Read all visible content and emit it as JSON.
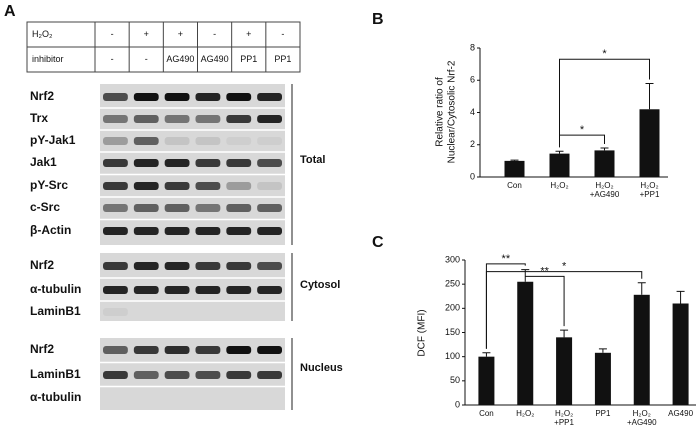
{
  "panel_labels": [
    "A",
    "B",
    "C"
  ],
  "blot": {
    "header": {
      "rows": [
        {
          "label": "H₂O₂",
          "cells": [
            "-",
            "+",
            "+",
            "-",
            "+",
            "-"
          ]
        },
        {
          "label": "inhibitor",
          "cells": [
            "-",
            "-",
            "AG490",
            "AG490",
            "PP1",
            "PP1"
          ]
        }
      ]
    },
    "groups": [
      {
        "label": "Total",
        "rows": [
          "Nrf2",
          "Trx",
          "pY-Jak1",
          "Jak1",
          "pY-Src",
          "c-Src",
          "β-Actin"
        ]
      },
      {
        "label": "Cytosol",
        "rows": [
          "Nrf2",
          "α-tubulin",
          "LaminB1"
        ]
      },
      {
        "label": "Nucleus",
        "rows": [
          "Nrf2",
          "LaminB1",
          "α-tubulin"
        ]
      }
    ]
  },
  "chart_data": [
    {
      "type": "bar",
      "ylabel": [
        "Relative ratio of",
        "Nuclear/Cytosolic Nrf-2"
      ],
      "categories": [
        "Con",
        "H₂O₂",
        "H₂O₂ +AG490",
        "H₂O₂ +PP1"
      ],
      "values": [
        1.0,
        1.45,
        1.65,
        4.2
      ],
      "errors": [
        0.05,
        0.15,
        0.15,
        1.6
      ],
      "color": "#111111",
      "ylim": [
        0,
        8
      ],
      "yticks": [
        0,
        2,
        4,
        6,
        8
      ],
      "annotations": [
        "*",
        "*"
      ]
    },
    {
      "type": "bar",
      "ylabel": [
        "DCF (MFI)"
      ],
      "categories": [
        "Con",
        "H₂O₂",
        "H₂O₂ +PP1",
        "PP1",
        "H₂O₂ +AG490",
        "AG490"
      ],
      "values": [
        100,
        255,
        140,
        108,
        228,
        210
      ],
      "errors": [
        8,
        25,
        15,
        8,
        25,
        25
      ],
      "color": "#111111",
      "ylim": [
        0,
        300
      ],
      "yticks": [
        0,
        50,
        100,
        150,
        200,
        250,
        300
      ],
      "annotations": [
        "**",
        "**",
        "*"
      ]
    }
  ]
}
